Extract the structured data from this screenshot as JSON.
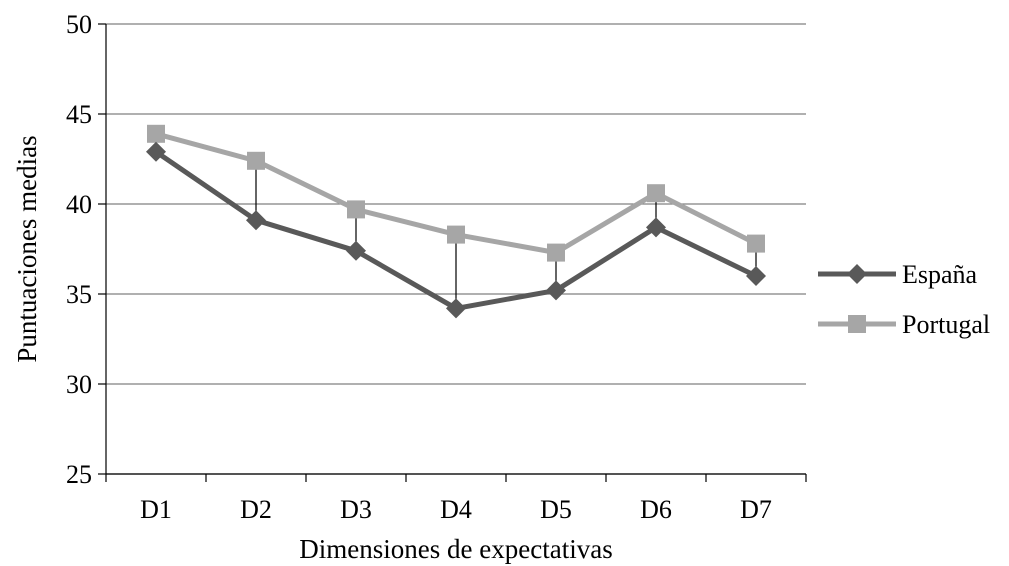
{
  "chart_data": {
    "type": "line",
    "title": "",
    "xlabel": "Dimensiones de expectativas",
    "ylabel": "Puntuaciones medias",
    "categories": [
      "D1",
      "D2",
      "D3",
      "D4",
      "D5",
      "D6",
      "D7"
    ],
    "ylim": [
      25,
      50
    ],
    "yticks": [
      25,
      30,
      35,
      40,
      45,
      50
    ],
    "grid": true,
    "legend": "right",
    "high_low_lines": true,
    "series": [
      {
        "name": "España",
        "marker": "diamond",
        "color": "#595959",
        "values": [
          42.9,
          39.1,
          37.4,
          34.2,
          35.2,
          38.7,
          36.0
        ]
      },
      {
        "name": "Portugal",
        "marker": "square",
        "color": "#a6a6a6",
        "values": [
          43.9,
          42.4,
          39.7,
          38.3,
          37.3,
          40.6,
          37.8
        ]
      }
    ]
  }
}
